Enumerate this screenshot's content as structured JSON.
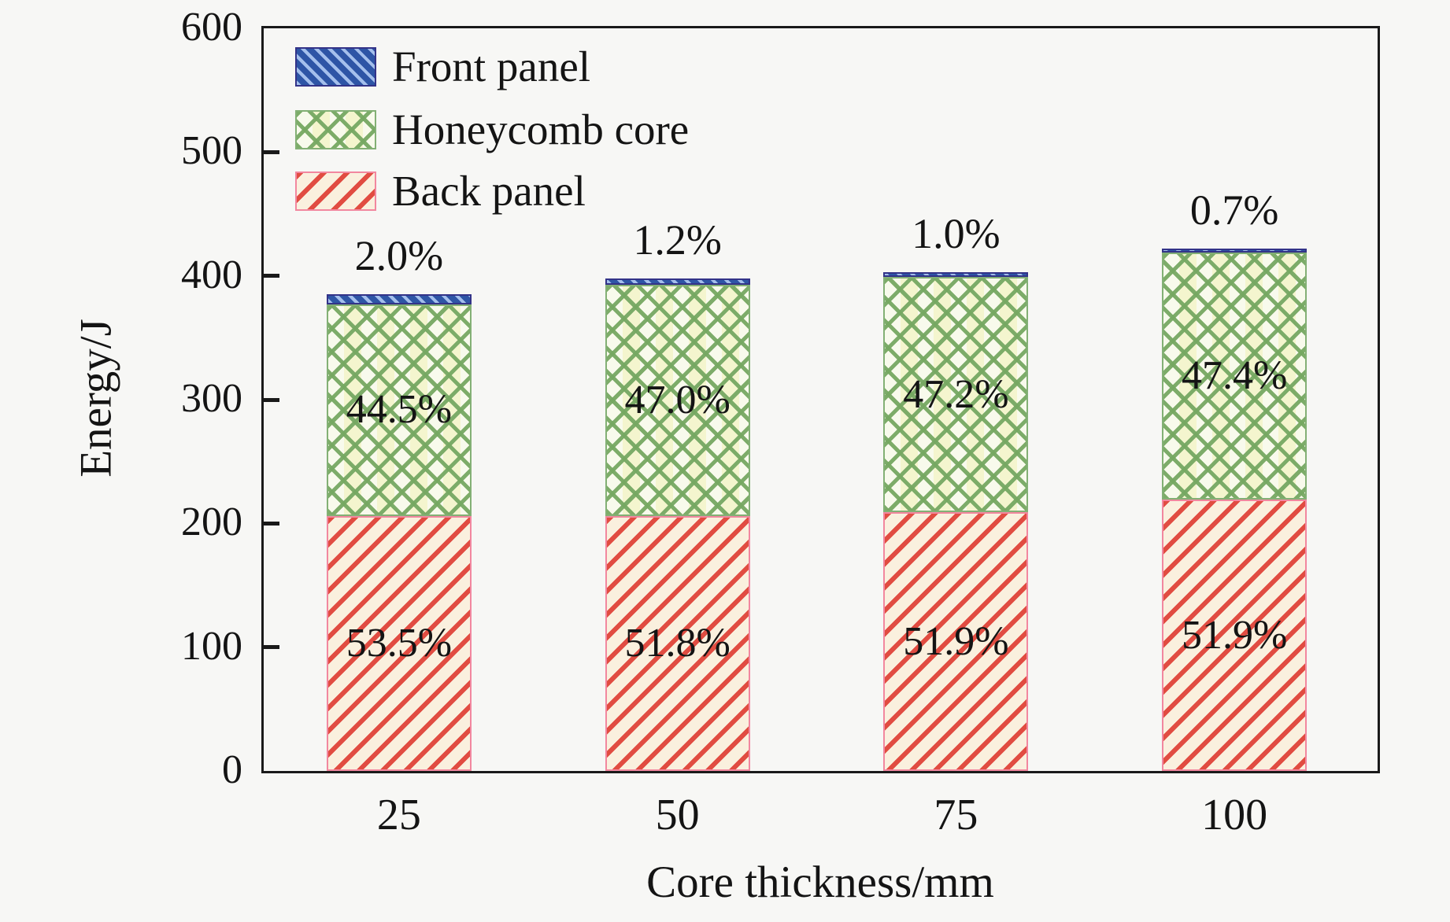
{
  "figure": {
    "background": "#f7f7f5",
    "axis_color": "#1a1a1a"
  },
  "chart_data": {
    "type": "bar",
    "stacked": true,
    "title": "",
    "xlabel": "Core thickness/mm",
    "ylabel": "Energy/J",
    "ylim": [
      0,
      600
    ],
    "yticks": [
      0,
      100,
      200,
      300,
      400,
      500,
      600
    ],
    "grid": false,
    "categories": [
      "25",
      "50",
      "75",
      "100"
    ],
    "series": [
      {
        "name": "Back panel",
        "hatch": "diagonal-forward",
        "line_color": "#df3e34",
        "fill_color": "#faf0de",
        "edge_color": "#f2879f",
        "values_J": [
          206,
          206,
          209,
          219
        ],
        "percent_labels": [
          "53.5%",
          "51.8%",
          "51.9%",
          "51.9%"
        ],
        "labels_above_bar": false
      },
      {
        "name": "Honeycomb core",
        "hatch": "crosshatch",
        "line_color": "#76a862",
        "fill_color": "#eff4d6",
        "edge_color": "#83b075",
        "values_J": [
          171,
          187,
          190,
          200
        ],
        "percent_labels": [
          "44.5%",
          "47.0%",
          "47.2%",
          "47.4%"
        ],
        "labels_above_bar": false
      },
      {
        "name": "Front panel",
        "hatch": "diagonal-back",
        "line_color": "#abc5f0",
        "fill_color": "#2e55a6",
        "edge_color": "#333388",
        "values_J": [
          8,
          5,
          4,
          3
        ],
        "percent_labels": [
          "2.0%",
          "1.2%",
          "1.0%",
          "0.7%"
        ],
        "labels_above_bar": true
      }
    ],
    "totals_J": [
      385,
      398,
      403,
      422
    ],
    "legend": {
      "position": "upper-left",
      "entries": [
        "Front panel",
        "Honeycomb core",
        "Back panel"
      ]
    }
  }
}
